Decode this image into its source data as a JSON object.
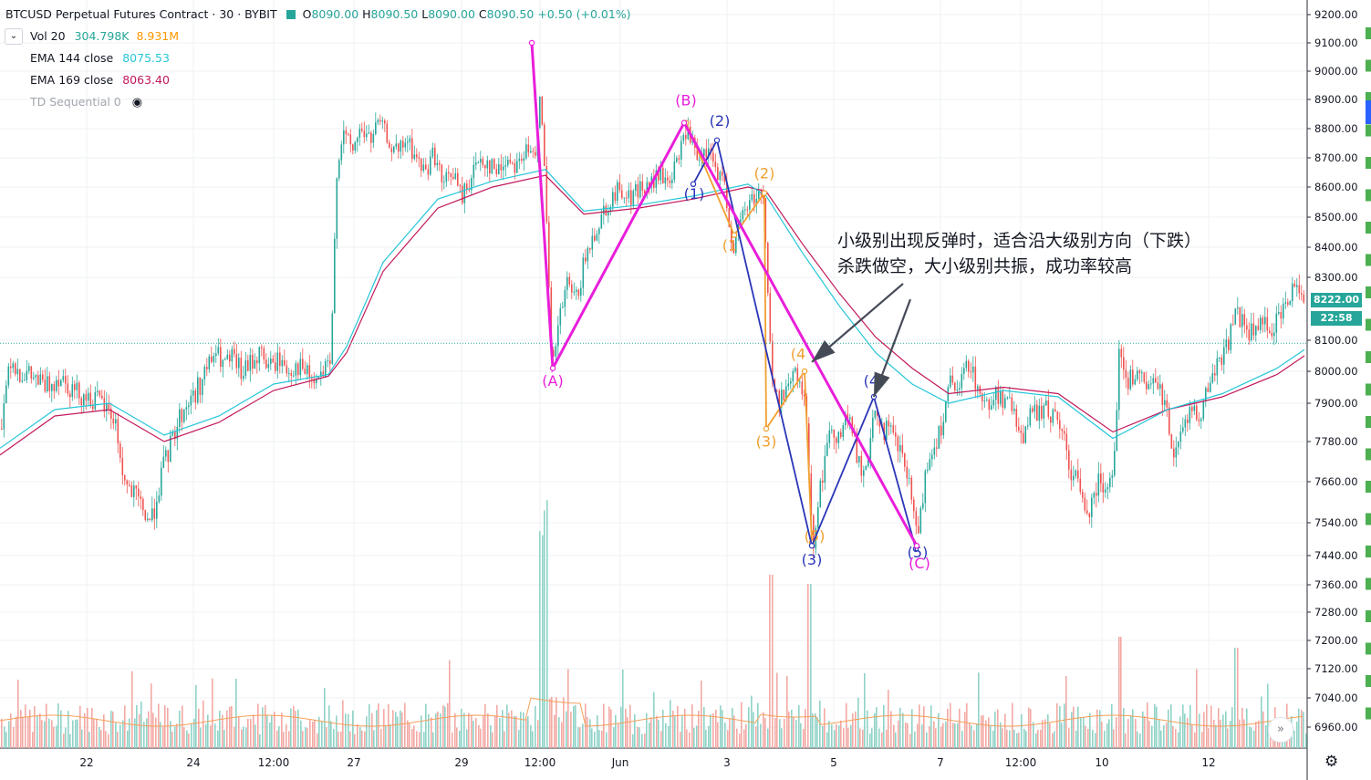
{
  "header": {
    "symbol": "BTCUSD Perpetual Futures Contract · 30 · BYBIT",
    "open_label": "O",
    "open": "8090.00",
    "high_label": "H",
    "high": "8090.50",
    "low_label": "L",
    "low": "8090.00",
    "close_label": "C",
    "close": "8090.50",
    "change": "+0.50 (+0.01%)"
  },
  "indicators": {
    "vol": {
      "label": "Vol 20",
      "value1": "304.798K",
      "value2": "8.931M",
      "color1": "#26a69a",
      "color2": "#ff9800"
    },
    "ema144": {
      "label": "EMA 144 close",
      "value": "8075.53",
      "color": "#26c6da"
    },
    "ema169": {
      "label": "EMA 169 close",
      "value": "8063.40",
      "color": "#c2185b"
    },
    "td": {
      "label": "TD Sequential 0"
    }
  },
  "price_badges": {
    "last": "8222.00",
    "last_color": "#26a69a",
    "countdown": "22:58"
  },
  "annotation": {
    "line1": "小级别出现反弹时，适合沿大级别方向（下跌）",
    "line2": "杀跌做空，大小级别共振，成功率较高"
  },
  "chart_data": {
    "type": "candlestick",
    "y_axis_ticks": [
      "9200.00",
      "9100.00",
      "9000.00",
      "8900.00",
      "8800.00",
      "8700.00",
      "8600.00",
      "8500.00",
      "8400.00",
      "8300.00",
      "8100.00",
      "8000.00",
      "7900.00",
      "7780.00",
      "7660.00",
      "7540.00",
      "7440.00",
      "7360.00",
      "7280.00",
      "7200.00",
      "7120.00",
      "7040.00",
      "6960.00"
    ],
    "x_axis_ticks": [
      "22",
      "24",
      "12:00",
      "27",
      "29",
      "12:00",
      "Jun",
      "3",
      "5",
      "7",
      "12:00",
      "10",
      "12"
    ],
    "ylim": [
      6900,
      9230
    ],
    "dotted_price_line": 8090.5,
    "price_path": [
      [
        0,
        7820
      ],
      [
        10,
        8050
      ],
      [
        20,
        8000
      ],
      [
        35,
        7980
      ],
      [
        50,
        7950
      ],
      [
        65,
        7990
      ],
      [
        80,
        7940
      ],
      [
        95,
        7920
      ],
      [
        110,
        7900
      ],
      [
        125,
        7850
      ],
      [
        135,
        7660
      ],
      [
        145,
        7620
      ],
      [
        155,
        7580
      ],
      [
        165,
        7540
      ],
      [
        175,
        7670
      ],
      [
        185,
        7760
      ],
      [
        195,
        7850
      ],
      [
        205,
        7900
      ],
      [
        215,
        7940
      ],
      [
        225,
        8000
      ],
      [
        235,
        8060
      ],
      [
        245,
        8020
      ],
      [
        255,
        8040
      ],
      [
        265,
        7990
      ],
      [
        275,
        8030
      ],
      [
        285,
        8060
      ],
      [
        295,
        8010
      ],
      [
        305,
        8040
      ],
      [
        315,
        8000
      ],
      [
        325,
        8020
      ],
      [
        335,
        7990
      ],
      [
        345,
        7960
      ],
      [
        355,
        8000
      ],
      [
        362,
        8010
      ],
      [
        368,
        8650
      ],
      [
        375,
        8790
      ],
      [
        385,
        8720
      ],
      [
        395,
        8800
      ],
      [
        405,
        8760
      ],
      [
        415,
        8820
      ],
      [
        425,
        8760
      ],
      [
        435,
        8710
      ],
      [
        445,
        8760
      ],
      [
        455,
        8700
      ],
      [
        465,
        8650
      ],
      [
        475,
        8720
      ],
      [
        485,
        8600
      ],
      [
        495,
        8660
      ],
      [
        505,
        8560
      ],
      [
        515,
        8630
      ],
      [
        525,
        8700
      ],
      [
        535,
        8680
      ],
      [
        545,
        8650
      ],
      [
        555,
        8700
      ],
      [
        565,
        8680
      ],
      [
        575,
        8720
      ],
      [
        585,
        8700
      ],
      [
        592,
        8960
      ],
      [
        598,
        8500
      ],
      [
        604,
        8000
      ],
      [
        612,
        8150
      ],
      [
        620,
        8280
      ],
      [
        630,
        8220
      ],
      [
        640,
        8350
      ],
      [
        650,
        8440
      ],
      [
        660,
        8520
      ],
      [
        670,
        8560
      ],
      [
        680,
        8600
      ],
      [
        690,
        8560
      ],
      [
        700,
        8600
      ],
      [
        710,
        8590
      ],
      [
        720,
        8640
      ],
      [
        730,
        8620
      ],
      [
        740,
        8660
      ],
      [
        750,
        8800
      ],
      [
        758,
        8750
      ],
      [
        765,
        8660
      ],
      [
        772,
        8720
      ],
      [
        780,
        8690
      ],
      [
        788,
        8640
      ],
      [
        795,
        8580
      ],
      [
        802,
        8400
      ],
      [
        808,
        8450
      ],
      [
        815,
        8520
      ],
      [
        822,
        8560
      ],
      [
        830,
        8580
      ],
      [
        836,
        8580
      ],
      [
        840,
        8320
      ],
      [
        845,
        7980
      ],
      [
        852,
        7900
      ],
      [
        860,
        7950
      ],
      [
        868,
        7980
      ],
      [
        876,
        7980
      ],
      [
        884,
        7840
      ],
      [
        890,
        7470
      ],
      [
        896,
        7600
      ],
      [
        904,
        7740
      ],
      [
        912,
        7820
      ],
      [
        920,
        7800
      ],
      [
        928,
        7860
      ],
      [
        936,
        7780
      ],
      [
        944,
        7660
      ],
      [
        952,
        7760
      ],
      [
        960,
        7880
      ],
      [
        968,
        7820
      ],
      [
        976,
        7800
      ],
      [
        984,
        7760
      ],
      [
        992,
        7700
      ],
      [
        1000,
        7580
      ],
      [
        1006,
        7480
      ],
      [
        1012,
        7660
      ],
      [
        1020,
        7750
      ],
      [
        1030,
        7820
      ],
      [
        1040,
        7960
      ],
      [
        1050,
        7920
      ],
      [
        1060,
        8040
      ],
      [
        1070,
        7960
      ],
      [
        1080,
        7880
      ],
      [
        1090,
        7940
      ],
      [
        1100,
        7900
      ],
      [
        1110,
        7880
      ],
      [
        1120,
        7800
      ],
      [
        1130,
        7860
      ],
      [
        1140,
        7880
      ],
      [
        1150,
        7870
      ],
      [
        1160,
        7850
      ],
      [
        1170,
        7720
      ],
      [
        1180,
        7660
      ],
      [
        1190,
        7560
      ],
      [
        1200,
        7650
      ],
      [
        1210,
        7660
      ],
      [
        1220,
        7700
      ],
      [
        1226,
        8060
      ],
      [
        1235,
        7960
      ],
      [
        1245,
        8000
      ],
      [
        1255,
        7940
      ],
      [
        1265,
        7960
      ],
      [
        1275,
        7920
      ],
      [
        1285,
        7760
      ],
      [
        1295,
        7800
      ],
      [
        1305,
        7900
      ],
      [
        1315,
        7860
      ],
      [
        1325,
        7960
      ],
      [
        1335,
        8040
      ],
      [
        1345,
        8080
      ],
      [
        1352,
        8200
      ],
      [
        1360,
        8160
      ],
      [
        1370,
        8120
      ],
      [
        1380,
        8150
      ],
      [
        1390,
        8140
      ],
      [
        1400,
        8160
      ],
      [
        1410,
        8220
      ],
      [
        1420,
        8300
      ],
      [
        1430,
        8220
      ]
    ],
    "ema144_path": [
      [
        0,
        7760
      ],
      [
        60,
        7880
      ],
      [
        120,
        7900
      ],
      [
        180,
        7800
      ],
      [
        240,
        7860
      ],
      [
        300,
        7960
      ],
      [
        360,
        7990
      ],
      [
        380,
        8080
      ],
      [
        420,
        8350
      ],
      [
        480,
        8560
      ],
      [
        540,
        8620
      ],
      [
        598,
        8660
      ],
      [
        640,
        8520
      ],
      [
        700,
        8540
      ],
      [
        760,
        8570
      ],
      [
        820,
        8610
      ],
      [
        840,
        8570
      ],
      [
        880,
        8380
      ],
      [
        920,
        8210
      ],
      [
        960,
        8060
      ],
      [
        1000,
        7960
      ],
      [
        1040,
        7900
      ],
      [
        1100,
        7940
      ],
      [
        1160,
        7920
      ],
      [
        1220,
        7790
      ],
      [
        1280,
        7880
      ],
      [
        1340,
        7930
      ],
      [
        1400,
        8010
      ],
      [
        1430,
        8070
      ]
    ],
    "ema169_path": [
      [
        0,
        7740
      ],
      [
        60,
        7860
      ],
      [
        120,
        7880
      ],
      [
        180,
        7780
      ],
      [
        240,
        7840
      ],
      [
        300,
        7940
      ],
      [
        360,
        7985
      ],
      [
        380,
        8060
      ],
      [
        420,
        8320
      ],
      [
        480,
        8530
      ],
      [
        540,
        8600
      ],
      [
        598,
        8640
      ],
      [
        640,
        8510
      ],
      [
        700,
        8530
      ],
      [
        760,
        8560
      ],
      [
        820,
        8600
      ],
      [
        840,
        8585
      ],
      [
        880,
        8410
      ],
      [
        920,
        8250
      ],
      [
        960,
        8110
      ],
      [
        1000,
        8010
      ],
      [
        1040,
        7930
      ],
      [
        1100,
        7950
      ],
      [
        1160,
        7930
      ],
      [
        1220,
        7810
      ],
      [
        1280,
        7880
      ],
      [
        1340,
        7920
      ],
      [
        1400,
        7990
      ],
      [
        1430,
        8050
      ]
    ],
    "waves": {
      "magenta": {
        "color": "#e91eda",
        "points": [
          [
            583,
            9100
          ],
          [
            606,
            8010
          ],
          [
            750,
            8820
          ],
          [
            1005,
            7470
          ]
        ],
        "labels": [
          {
            "text": "(A)",
            "at": [
              606,
              7955
            ]
          },
          {
            "text": "(B)",
            "at": [
              752,
              8880
            ]
          },
          {
            "text": "(C)",
            "at": [
              1008,
              7405
            ]
          }
        ]
      },
      "navy": {
        "color": "#2a35b8",
        "points": [
          [
            760,
            8610
          ],
          [
            786,
            8760
          ],
          [
            890,
            7470
          ],
          [
            958,
            7920
          ],
          [
            1004,
            7460
          ]
        ],
        "labels": [
          {
            "text": "(1)",
            "at": [
              761,
              8560
            ]
          },
          {
            "text": "(2)",
            "at": [
              789,
              8810
            ]
          },
          {
            "text": "(3)",
            "at": [
              890,
              7415
            ]
          },
          {
            "text": "(4)",
            "at": [
              958,
              7955
            ]
          },
          {
            "text": "(5)",
            "at": [
              1006,
              7435
            ]
          }
        ]
      },
      "orange": {
        "color": "#f0a030",
        "points": [
          [
            752,
            8820
          ],
          [
            805,
            8440
          ],
          [
            838,
            8580
          ],
          [
            840,
            7820
          ],
          [
            882,
            8000
          ],
          [
            890,
            7480
          ]
        ],
        "labels": [
          {
            "text": "(1",
            "at": [
              800,
              8390
            ]
          },
          {
            "text": "(2)",
            "at": [
              838,
              8630
            ]
          },
          {
            "text": "(3)",
            "at": [
              840,
              7765
            ]
          },
          {
            "text": "(4",
            "at": [
              875,
              8040
            ]
          },
          {
            "text": "(5)",
            "at": [
              893,
              7485
            ]
          }
        ]
      }
    },
    "arrows": [
      [
        990,
        8280,
        890,
        8030
      ],
      [
        998,
        8230,
        958,
        7920
      ]
    ]
  }
}
